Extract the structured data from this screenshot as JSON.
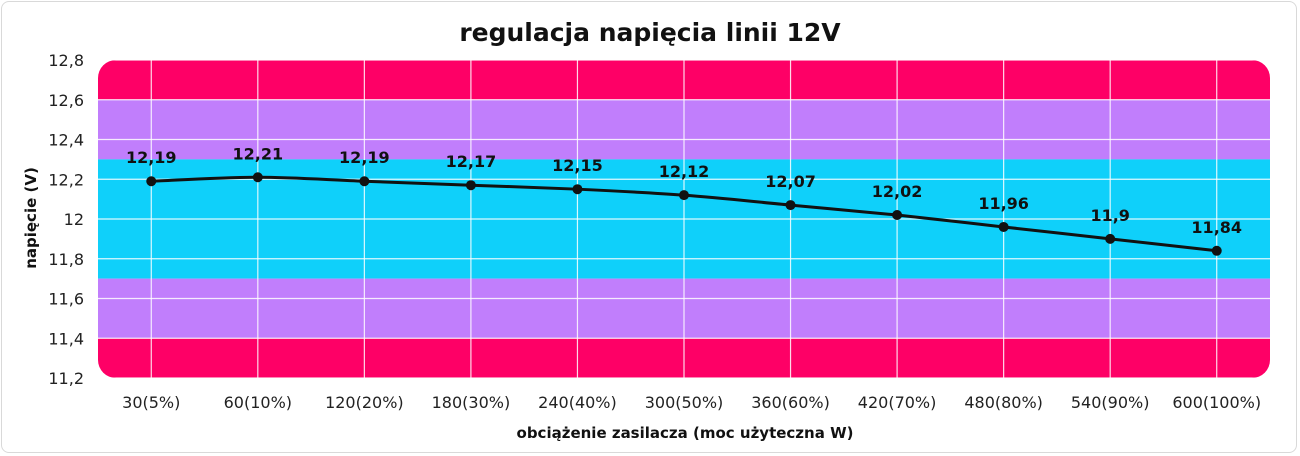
{
  "chart_data": {
    "type": "line",
    "title": "regulacja napięcia linii 12V",
    "xlabel": "obciążenie zasilacza (moc użyteczna W)",
    "ylabel": "napięcie (V)",
    "categories": [
      "30(5%)",
      "60(10%)",
      "120(20%)",
      "180(30%)",
      "240(40%)",
      "300(50%)",
      "360(60%)",
      "420(70%)",
      "480(80%)",
      "540(90%)",
      "600(100%)"
    ],
    "series": [
      {
        "values": [
          12.19,
          12.21,
          12.19,
          12.17,
          12.15,
          12.12,
          12.07,
          12.02,
          11.96,
          11.9,
          11.84
        ],
        "value_labels": [
          "12,19",
          "12,21",
          "12,19",
          "12,17",
          "12,15",
          "12,12",
          "12,07",
          "12,02",
          "11,96",
          "11,9",
          "11,84"
        ]
      }
    ],
    "ylim": [
      11.2,
      12.8
    ],
    "yticks": [
      11.2,
      11.4,
      11.6,
      11.8,
      12,
      12.2,
      12.4,
      12.6,
      12.8
    ],
    "ytick_labels": [
      "11,2",
      "11,4",
      "11,6",
      "11,8",
      "12",
      "12,2",
      "12,4",
      "12,6",
      "12,8"
    ],
    "grid": true,
    "background_bands": [
      {
        "from": 12.6,
        "to": 12.8,
        "color": "#fe0066"
      },
      {
        "from": 12.3,
        "to": 12.6,
        "color": "#c17efc"
      },
      {
        "from": 11.7,
        "to": 12.3,
        "color": "#0fd0fa"
      },
      {
        "from": 11.4,
        "to": 11.7,
        "color": "#c17efc"
      },
      {
        "from": 11.2,
        "to": 11.4,
        "color": "#fe0066"
      }
    ],
    "line_color": "#111111"
  }
}
